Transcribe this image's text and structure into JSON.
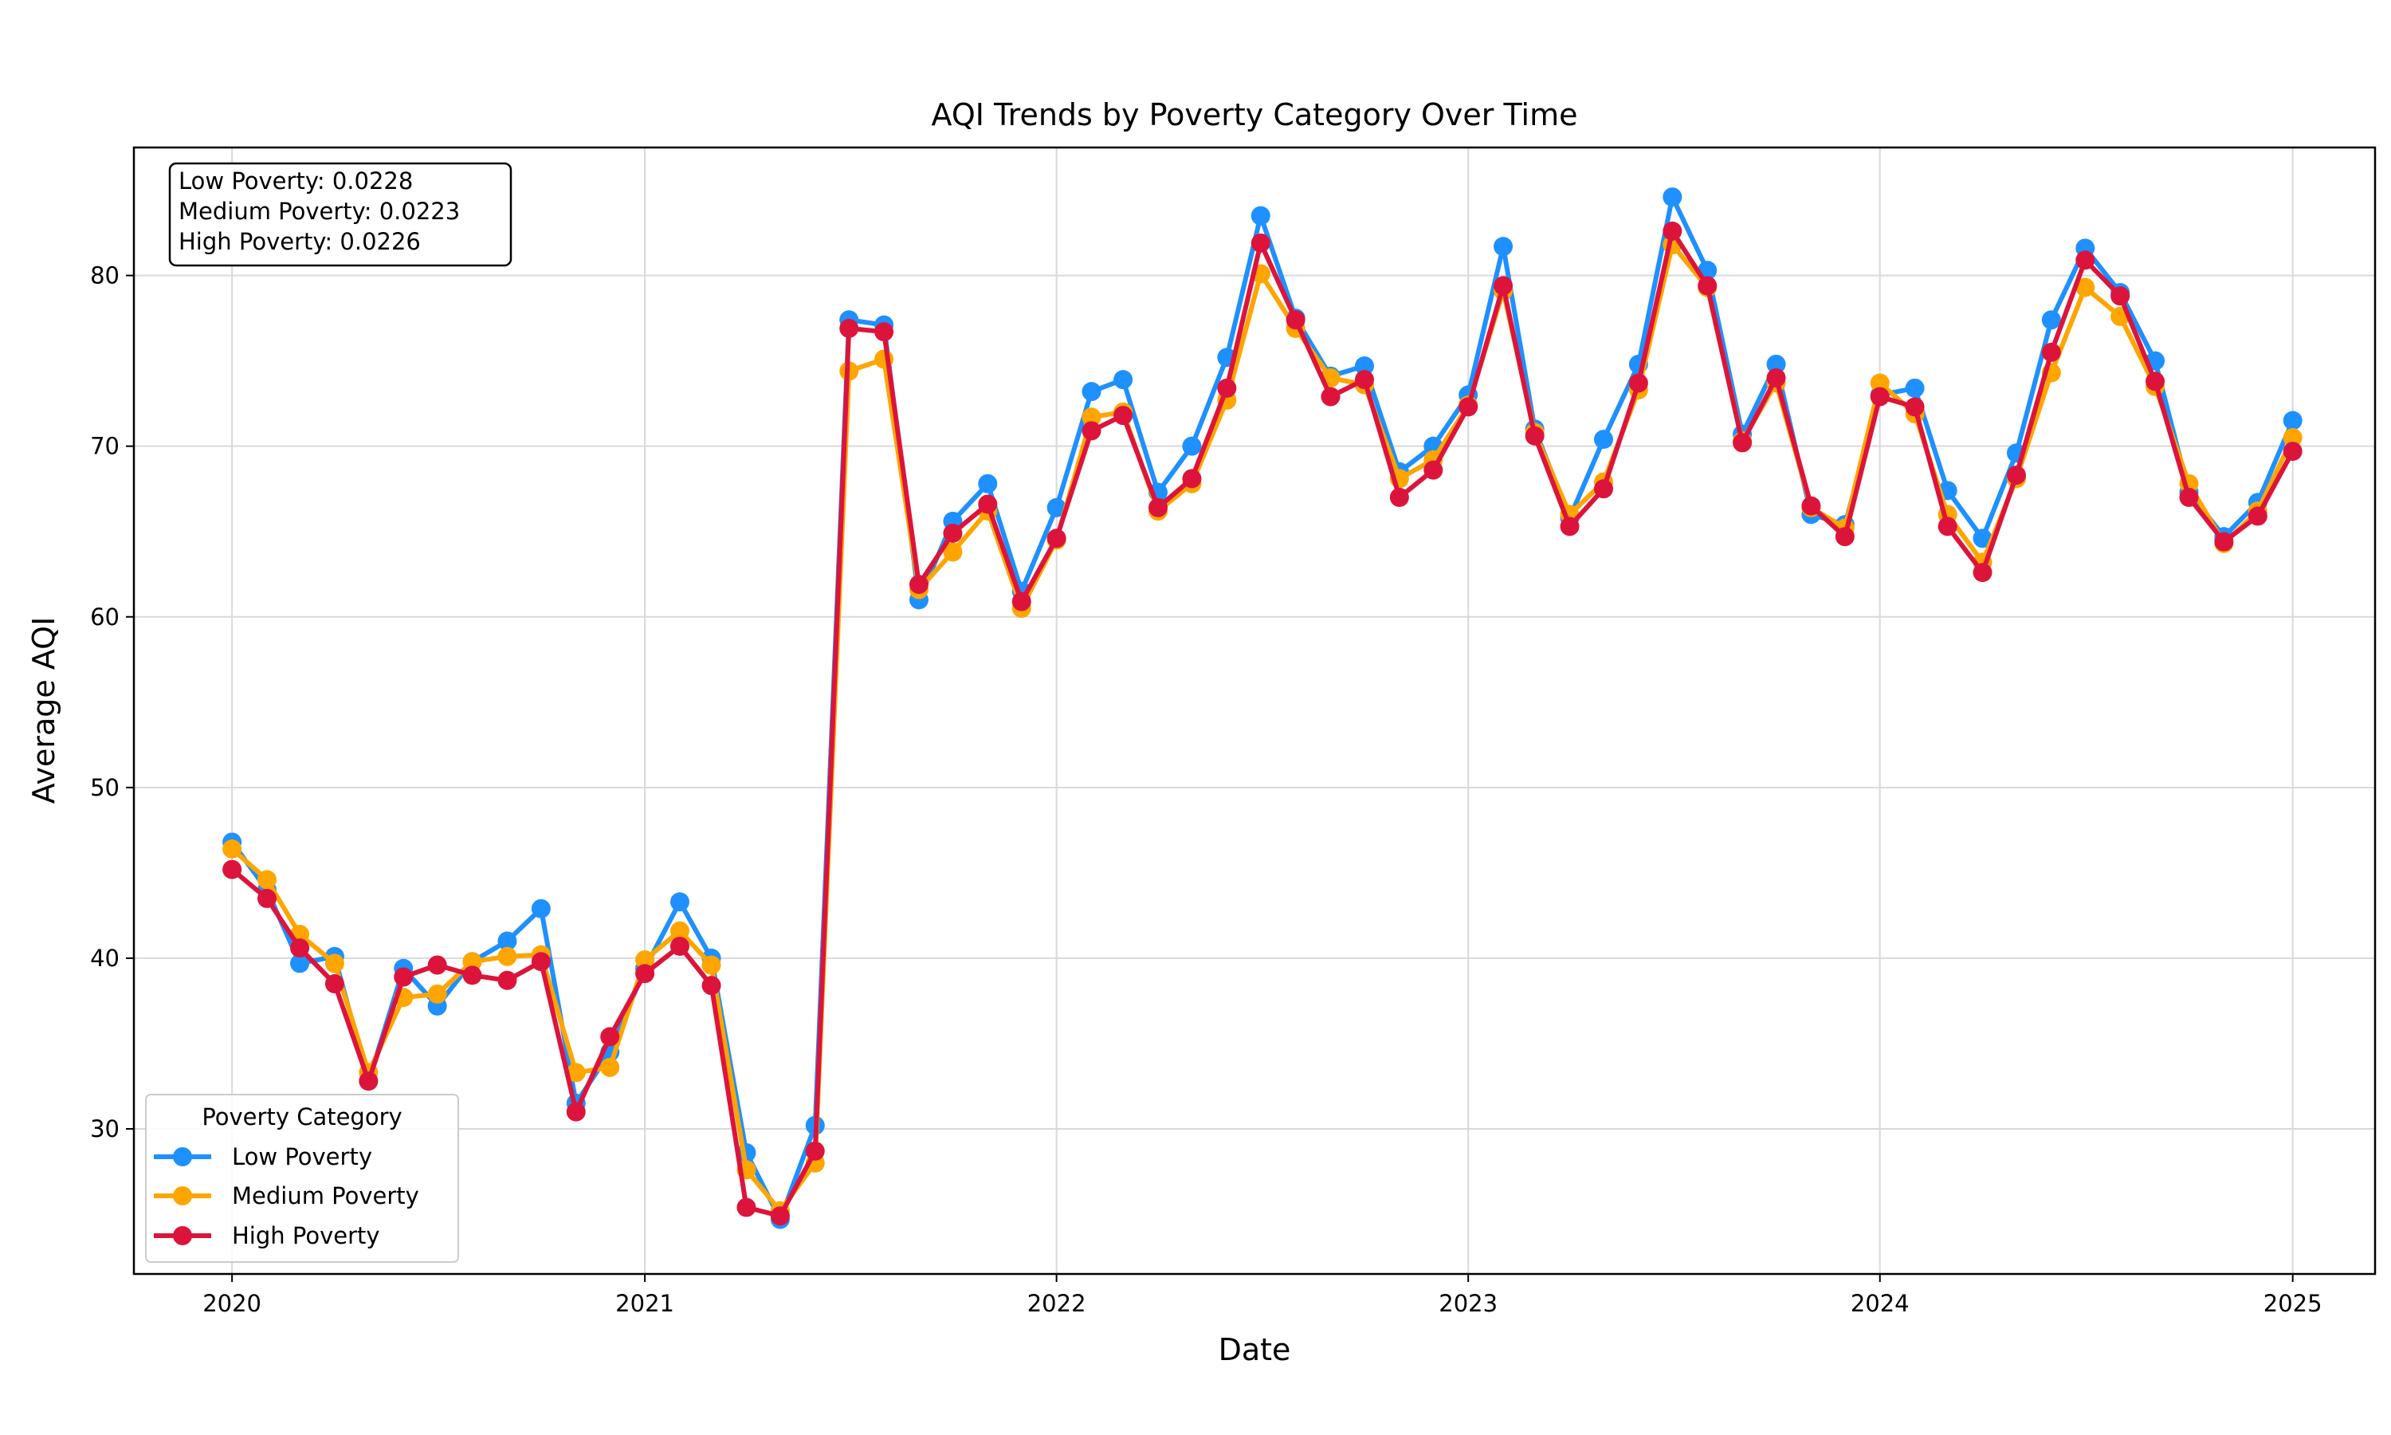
{
  "chart_data": {
    "type": "line",
    "title": "AQI Trends by Poverty Category Over Time",
    "xlabel": "Date",
    "ylabel": "Average AQI",
    "x_ticks": [
      "2020",
      "2021",
      "2022",
      "2023",
      "2024",
      "2025"
    ],
    "y_ticks": [
      30,
      40,
      50,
      60,
      70,
      80
    ],
    "ylim": [
      21.5,
      87.5
    ],
    "xlim": [
      "2019-10-06",
      "2025-03-15"
    ],
    "grid": true,
    "legend": {
      "title": "Poverty Category",
      "placement": "lower-left"
    },
    "stats_box": [
      "Low Poverty: 0.0228",
      "Medium Poverty: 0.0223",
      "High Poverty: 0.0226"
    ],
    "x": [
      "2020-01",
      "2020-02",
      "2020-03",
      "2020-04",
      "2020-05",
      "2020-06",
      "2020-07",
      "2020-08",
      "2020-09",
      "2020-10",
      "2020-11",
      "2020-12",
      "2021-01",
      "2021-02",
      "2021-03",
      "2021-04",
      "2021-05",
      "2021-06",
      "2021-07",
      "2021-08",
      "2021-09",
      "2021-10",
      "2021-11",
      "2021-12",
      "2022-01",
      "2022-02",
      "2022-03",
      "2022-04",
      "2022-05",
      "2022-06",
      "2022-07",
      "2022-08",
      "2022-09",
      "2022-10",
      "2022-11",
      "2022-12",
      "2023-01",
      "2023-02",
      "2023-03",
      "2023-04",
      "2023-05",
      "2023-06",
      "2023-07",
      "2023-08",
      "2023-09",
      "2023-10",
      "2023-11",
      "2023-12",
      "2024-01",
      "2024-02",
      "2024-03",
      "2024-04",
      "2024-05",
      "2024-06",
      "2024-07",
      "2024-08",
      "2024-09",
      "2024-10",
      "2024-11",
      "2024-12",
      "2025-01"
    ],
    "series": [
      {
        "name": "Low Poverty",
        "color": "#1e90ff",
        "values": [
          46.8,
          44.0,
          39.7,
          40.1,
          32.8,
          39.4,
          37.2,
          39.8,
          41.0,
          42.9,
          31.5,
          34.5,
          39.4,
          43.3,
          40.0,
          28.6,
          24.7,
          30.2,
          77.4,
          77.1,
          61.0,
          65.6,
          67.8,
          61.5,
          66.4,
          73.2,
          73.9,
          67.3,
          70.0,
          75.2,
          83.5,
          77.5,
          74.1,
          74.7,
          68.5,
          70.0,
          73.0,
          81.7,
          71.0,
          65.8,
          70.4,
          74.8,
          84.6,
          80.3,
          70.7,
          74.8,
          66.0,
          65.4,
          73.0,
          73.4,
          67.4,
          64.6,
          69.6,
          77.4,
          81.6,
          79.0,
          75.0,
          67.3,
          64.7,
          66.7,
          71.5
        ]
      },
      {
        "name": "Medium Poverty",
        "color": "#ffa500",
        "values": [
          46.4,
          44.6,
          41.4,
          39.7,
          33.3,
          37.7,
          37.9,
          39.8,
          40.1,
          40.2,
          33.3,
          33.6,
          39.9,
          41.6,
          39.6,
          27.6,
          25.2,
          28.0,
          74.4,
          75.1,
          61.6,
          63.8,
          66.2,
          60.5,
          64.5,
          71.7,
          72.0,
          66.2,
          67.8,
          72.7,
          80.1,
          76.9,
          74.0,
          73.6,
          68.1,
          69.2,
          72.4,
          79.1,
          70.8,
          66.0,
          67.9,
          73.3,
          81.8,
          79.3,
          70.3,
          73.7,
          66.4,
          65.2,
          73.7,
          71.9,
          66.0,
          63.2,
          68.1,
          74.3,
          79.3,
          77.6,
          73.5,
          67.8,
          64.3,
          66.2,
          70.5
        ]
      },
      {
        "name": "High Poverty",
        "color": "#dc143c",
        "values": [
          45.2,
          43.5,
          40.6,
          38.5,
          32.8,
          38.9,
          39.6,
          39.0,
          38.7,
          39.8,
          31.0,
          35.4,
          39.1,
          40.7,
          38.4,
          25.4,
          24.9,
          28.7,
          76.9,
          76.7,
          61.9,
          64.9,
          66.6,
          60.9,
          64.6,
          70.9,
          71.8,
          66.4,
          68.1,
          73.4,
          81.9,
          77.4,
          72.9,
          73.9,
          67.0,
          68.6,
          72.3,
          79.4,
          70.6,
          65.3,
          67.5,
          73.7,
          82.6,
          79.4,
          70.2,
          74.0,
          66.5,
          64.7,
          72.9,
          72.3,
          65.3,
          62.6,
          68.3,
          75.5,
          80.9,
          78.8,
          73.8,
          67.0,
          64.4,
          65.9,
          69.7
        ]
      }
    ]
  }
}
